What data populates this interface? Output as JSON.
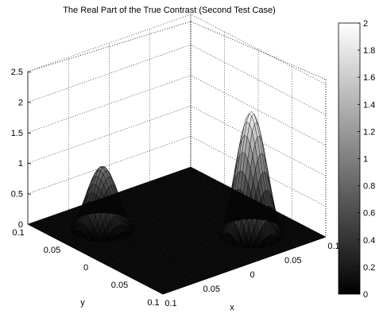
{
  "chart_data": {
    "type": "surface",
    "title": "The Real Part of the True Contrast (Second Test Case)",
    "xlabel": "x",
    "ylabel": "y",
    "zlabel": "",
    "x_ticks": [
      "0.1",
      "0.05",
      "0",
      "0.05",
      "0.1"
    ],
    "y_ticks": [
      "0.1",
      "0.05",
      "0",
      "0.05",
      "0.1"
    ],
    "z_ticks": [
      "0",
      "0.5",
      "1",
      "1.5",
      "2",
      "2.5"
    ],
    "xlim": [
      -0.1,
      0.1
    ],
    "ylim": [
      -0.1,
      0.1
    ],
    "zlim": [
      0,
      2.5
    ],
    "grid": true,
    "colormap": "gray",
    "colorbar": {
      "range": [
        0,
        2
      ],
      "ticks": [
        "0",
        "0.2",
        "0.4",
        "0.6",
        "0.8",
        "1",
        "1.2",
        "1.4",
        "1.6",
        "1.8",
        "2"
      ]
    },
    "peaks": [
      {
        "x": -0.05,
        "y": 0.05,
        "height": 1.0,
        "radius": 0.032
      },
      {
        "x": 0.05,
        "y": -0.05,
        "height": 2.0,
        "radius": 0.032
      }
    ]
  }
}
